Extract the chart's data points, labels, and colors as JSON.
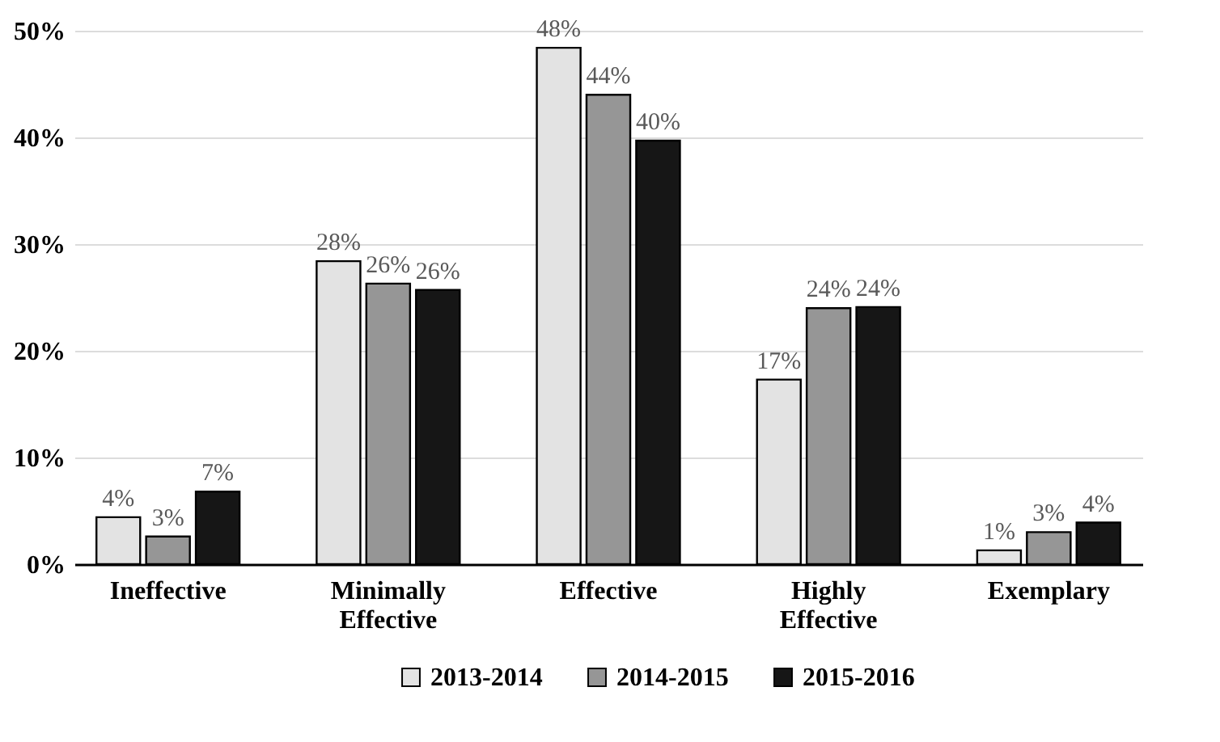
{
  "chart_data": {
    "type": "bar",
    "categories": [
      "Ineffective",
      "Minimally Effective",
      "Effective",
      "Highly Effective",
      "Exemplary"
    ],
    "series": [
      {
        "name": "2013-2014",
        "color": "#e3e3e3",
        "values": [
          4.4,
          28.4,
          48.4,
          17.3,
          1.3
        ],
        "value_labels": [
          "4%",
          "28%",
          "48%",
          "17%",
          "1%"
        ]
      },
      {
        "name": "2014-2015",
        "color": "#969696",
        "values": [
          2.6,
          26.3,
          44.0,
          24.0,
          3.0
        ],
        "value_labels": [
          "3%",
          "26%",
          "44%",
          "24%",
          "3%"
        ]
      },
      {
        "name": "2015-2016",
        "color": "#161616",
        "values": [
          6.8,
          25.7,
          39.7,
          24.1,
          3.9
        ],
        "value_labels": [
          "7%",
          "26%",
          "40%",
          "24%",
          "4%"
        ]
      }
    ],
    "ylim": [
      0,
      50
    ],
    "yticks": [
      {
        "value": 0,
        "label": "0%"
      },
      {
        "value": 10,
        "label": "10%"
      },
      {
        "value": 20,
        "label": "20%"
      },
      {
        "value": 30,
        "label": "30%"
      },
      {
        "value": 40,
        "label": "40%"
      },
      {
        "value": 50,
        "label": "50%"
      }
    ],
    "grid": "y",
    "legend": "bottom"
  }
}
